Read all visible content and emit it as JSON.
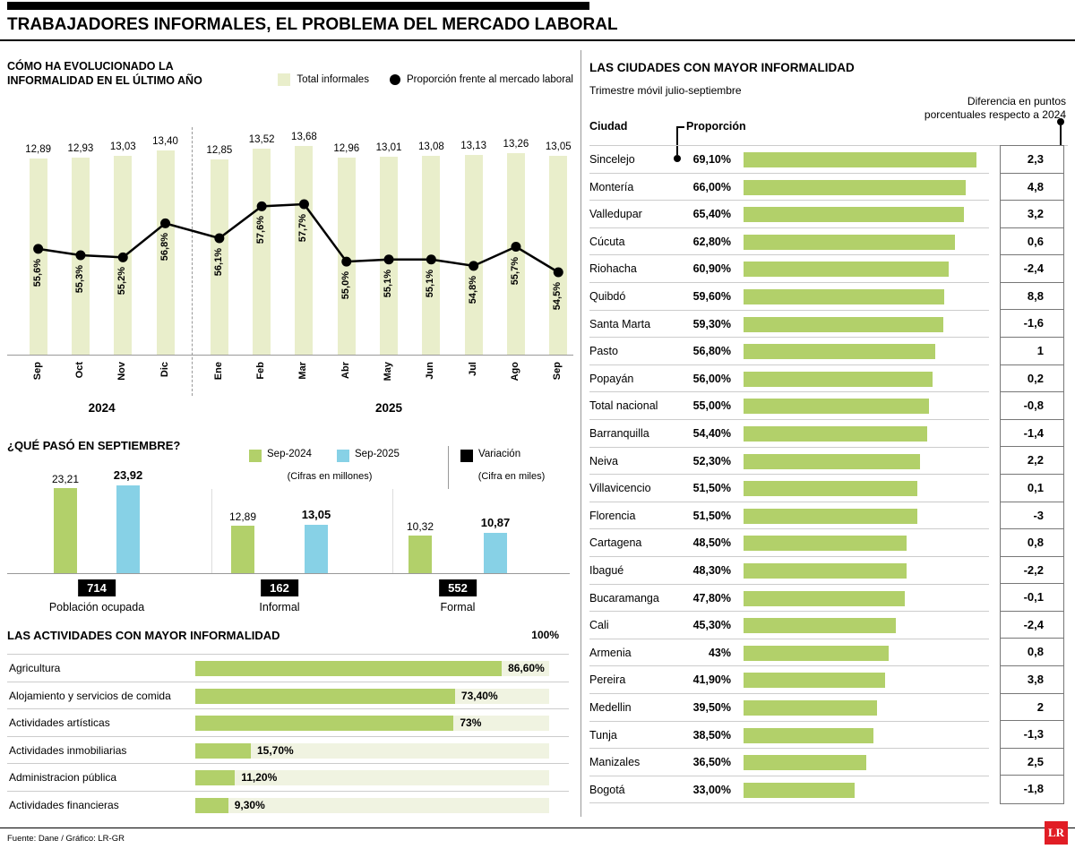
{
  "header": {
    "title": "TRABAJADORES INFORMALES, EL PROBLEMA DEL MERCADO LABORAL"
  },
  "footer": {
    "source": "Fuente: Dane / Gráfico: LR-GR",
    "logo_text": "LR"
  },
  "colors": {
    "pale_green": "#e9eecb",
    "green": "#b2d06a",
    "blue": "#87d1e6",
    "track_green": "#f0f3e1",
    "red": "#e11d25"
  },
  "chart_data": [
    {
      "id": "evolution",
      "type": "bar+line",
      "title_line1": "CÓMO HA EVOLUCIONADO LA",
      "title_line2": "INFORMALIDAD EN EL ÚLTIMO AÑO",
      "legend": [
        {
          "label": "Total informales",
          "swatch": "pale-green-square"
        },
        {
          "label": "Proporción frente al mercado laboral",
          "swatch": "black-dot"
        }
      ],
      "categories": [
        "Sep",
        "Oct",
        "Nov",
        "Dic",
        "Ene",
        "Feb",
        "Mar",
        "Abr",
        "May",
        "Jun",
        "Jul",
        "Ago",
        "Sep"
      ],
      "year_groups": [
        {
          "label": "2024",
          "from": "Sep",
          "to": "Dic"
        },
        {
          "label": "2025",
          "from": "Ene",
          "to": "Sep"
        }
      ],
      "series": [
        {
          "name": "Total informales",
          "unit": "millones",
          "values": [
            12.89,
            12.93,
            13.03,
            13.4,
            12.85,
            13.52,
            13.68,
            12.96,
            13.01,
            13.08,
            13.13,
            13.26,
            13.05
          ],
          "labels": [
            "12,89",
            "12,93",
            "13,03",
            "13,40",
            "12,85",
            "13,52",
            "13,68",
            "12,96",
            "13,01",
            "13,08",
            "13,13",
            "13,26",
            "13,05"
          ]
        },
        {
          "name": "Proporción frente al mercado laboral",
          "unit": "%",
          "values": [
            55.6,
            55.3,
            55.2,
            56.8,
            56.1,
            57.6,
            57.7,
            55.0,
            55.1,
            55.1,
            54.8,
            55.7,
            54.5
          ],
          "labels": [
            "55,6%",
            "55,3%",
            "55,2%",
            "56,8%",
            "56,1%",
            "57,6%",
            "57,7%",
            "55,0%",
            "55,1%",
            "55,1%",
            "54,8%",
            "55,7%",
            "54,5%"
          ]
        }
      ]
    },
    {
      "id": "september",
      "type": "grouped-bar",
      "title": "¿QUÉ PASÓ EN SEPTIEMBRE?",
      "legend": {
        "sep2024": "Sep-2024",
        "sep2025": "Sep-2025",
        "bars_unit": "(Cifras en millones)",
        "variation": "Variación",
        "variation_unit": "(Cifra en miles)"
      },
      "groups": [
        {
          "label": "Población ocupada",
          "sep2024": 23.21,
          "sep2024_label": "23,21",
          "sep2025": 23.92,
          "sep2025_label": "23,92",
          "variation": "714"
        },
        {
          "label": "Informal",
          "sep2024": 12.89,
          "sep2024_label": "12,89",
          "sep2025": 13.05,
          "sep2025_label": "13,05",
          "variation": "162"
        },
        {
          "label": "Formal",
          "sep2024": 10.32,
          "sep2024_label": "10,32",
          "sep2025": 10.87,
          "sep2025_label": "10,87",
          "variation": "552"
        }
      ]
    },
    {
      "id": "activities",
      "type": "bar-horizontal",
      "title": "LAS ACTIVIDADES CON MAYOR INFORMALIDAD",
      "scale_max_label": "100%",
      "xlim": [
        0,
        100
      ],
      "rows": [
        {
          "label": "Agricultura",
          "value": 86.6,
          "value_label": "86,60%"
        },
        {
          "label": "Alojamiento y servicios de comida",
          "value": 73.4,
          "value_label": "73,40%"
        },
        {
          "label": "Actividades artísticas",
          "value": 73,
          "value_label": "73%"
        },
        {
          "label": "Actividades inmobiliarias",
          "value": 15.7,
          "value_label": "15,70%"
        },
        {
          "label": "Administracion pública",
          "value": 11.2,
          "value_label": "11,20%"
        },
        {
          "label": "Actividades financieras",
          "value": 9.3,
          "value_label": "9,30%"
        }
      ]
    },
    {
      "id": "cities",
      "type": "bar-horizontal",
      "title": "LAS CIUDADES CON MAYOR INFORMALIDAD",
      "subtitle": "Trimestre móvil julio-septiembre",
      "columns": {
        "city": "Ciudad",
        "proportion": "Proporción",
        "diff_line1": "Diferencia en puntos",
        "diff_line2": "porcentuales respecto a 2024"
      },
      "xlim": [
        0,
        69.1
      ],
      "rows": [
        {
          "city": "Sincelejo",
          "value": 69.1,
          "value_label": "69,10%",
          "diff": "2,3"
        },
        {
          "city": "Montería",
          "value": 66.0,
          "value_label": "66,00%",
          "diff": "4,8"
        },
        {
          "city": "Valledupar",
          "value": 65.4,
          "value_label": "65,40%",
          "diff": "3,2"
        },
        {
          "city": "Cúcuta",
          "value": 62.8,
          "value_label": "62,80%",
          "diff": "0,6"
        },
        {
          "city": "Riohacha",
          "value": 60.9,
          "value_label": "60,90%",
          "diff": "-2,4"
        },
        {
          "city": "Quibdó",
          "value": 59.6,
          "value_label": "59,60%",
          "diff": "8,8"
        },
        {
          "city": "Santa Marta",
          "value": 59.3,
          "value_label": "59,30%",
          "diff": "-1,6"
        },
        {
          "city": "Pasto",
          "value": 56.8,
          "value_label": "56,80%",
          "diff": "1"
        },
        {
          "city": "Popayán",
          "value": 56.0,
          "value_label": "56,00%",
          "diff": "0,2"
        },
        {
          "city": "Total nacional",
          "value": 55.0,
          "value_label": "55,00%",
          "diff": "-0,8"
        },
        {
          "city": "Barranquilla",
          "value": 54.4,
          "value_label": "54,40%",
          "diff": "-1,4"
        },
        {
          "city": "Neiva",
          "value": 52.3,
          "value_label": "52,30%",
          "diff": "2,2"
        },
        {
          "city": "Villavicencio",
          "value": 51.5,
          "value_label": "51,50%",
          "diff": "0,1"
        },
        {
          "city": "Florencia",
          "value": 51.5,
          "value_label": "51,50%",
          "diff": "-3"
        },
        {
          "city": "Cartagena",
          "value": 48.5,
          "value_label": "48,50%",
          "diff": "0,8"
        },
        {
          "city": "Ibagué",
          "value": 48.3,
          "value_label": "48,30%",
          "diff": "-2,2"
        },
        {
          "city": "Bucaramanga",
          "value": 47.8,
          "value_label": "47,80%",
          "diff": "-0,1"
        },
        {
          "city": "Cali",
          "value": 45.3,
          "value_label": "45,30%",
          "diff": "-2,4"
        },
        {
          "city": "Armenia",
          "value": 43.0,
          "value_label": "43%",
          "diff": "0,8"
        },
        {
          "city": "Pereira",
          "value": 41.9,
          "value_label": "41,90%",
          "diff": "3,8"
        },
        {
          "city": "Medellin",
          "value": 39.5,
          "value_label": "39,50%",
          "diff": "2"
        },
        {
          "city": "Tunja",
          "value": 38.5,
          "value_label": "38,50%",
          "diff": "-1,3"
        },
        {
          "city": "Manizales",
          "value": 36.5,
          "value_label": "36,50%",
          "diff": "2,5"
        },
        {
          "city": "Bogotá",
          "value": 33.0,
          "value_label": "33,00%",
          "diff": "-1,8"
        }
      ]
    }
  ]
}
